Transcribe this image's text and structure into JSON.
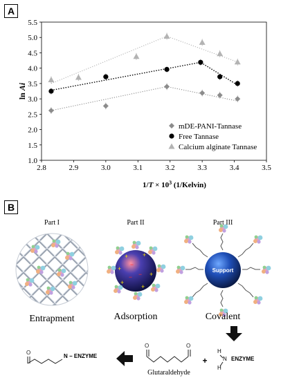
{
  "panel_a_label": "A",
  "panel_b_label": "B",
  "chart_data": {
    "type": "scatter",
    "xlabel_prefix": "1/",
    "xlabel_var": "T",
    "xlabel_mid": " × 10",
    "xlabel_exp": "3",
    "xlabel_unit": " (1/Kelvin)",
    "ylabel_prefix": "ln ",
    "ylabel_var": "Ai",
    "xlim": [
      2.8,
      3.5
    ],
    "ylim": [
      1.0,
      5.5
    ],
    "xticks": [
      "2.8",
      "2.9",
      "3.0",
      "3.1",
      "3.2",
      "3.3",
      "3.4",
      "3.5"
    ],
    "yticks": [
      "1.0",
      "1.5",
      "2.0",
      "2.5",
      "3.0",
      "3.5",
      "4.0",
      "4.5",
      "5.0",
      "5.5"
    ],
    "grid": false,
    "legend_position": "bottom-right",
    "series": [
      {
        "name": "mDE-PANI-Tannase",
        "marker": "diamond",
        "color": "#8c8c8c",
        "x": [
          2.83,
          3.0,
          3.19,
          3.3,
          3.355,
          3.41
        ],
        "y": [
          2.62,
          2.77,
          3.4,
          3.19,
          3.12,
          3.0
        ],
        "trend": [
          [
            2.83,
            2.62
          ],
          [
            3.19,
            3.4
          ],
          [
            3.41,
            2.93
          ]
        ]
      },
      {
        "name": "Free Tannase",
        "marker": "circle",
        "color": "#000000",
        "x": [
          2.83,
          3.0,
          3.19,
          3.295,
          3.355,
          3.41
        ],
        "y": [
          3.25,
          3.72,
          3.96,
          4.19,
          3.72,
          3.5
        ],
        "trend": [
          [
            2.83,
            3.28
          ],
          [
            3.295,
            4.19
          ],
          [
            3.41,
            3.45
          ]
        ]
      },
      {
        "name": "Calcium alginate Tannase",
        "marker": "triangle",
        "color": "#b3b3b3",
        "x": [
          2.83,
          2.915,
          3.095,
          3.19,
          3.3,
          3.355,
          3.41
        ],
        "y": [
          3.62,
          3.7,
          4.38,
          5.04,
          4.84,
          4.47,
          4.2
        ],
        "trend": [
          [
            2.83,
            3.5
          ],
          [
            3.19,
            5.04
          ],
          [
            3.41,
            4.2
          ]
        ]
      }
    ]
  },
  "panel_b": {
    "part1": "Part I",
    "part2": "Part II",
    "part3": "Part III",
    "label1": "Entrapment",
    "label2": "Adsorption",
    "label3": "Covalent",
    "support": "Support",
    "enzyme_product": "N − ENZYME",
    "enzyme_reagent": "ENZYME",
    "glutaraldehyde": "Glutaraldehyde",
    "plus": "+",
    "h": "H",
    "n": "N"
  }
}
